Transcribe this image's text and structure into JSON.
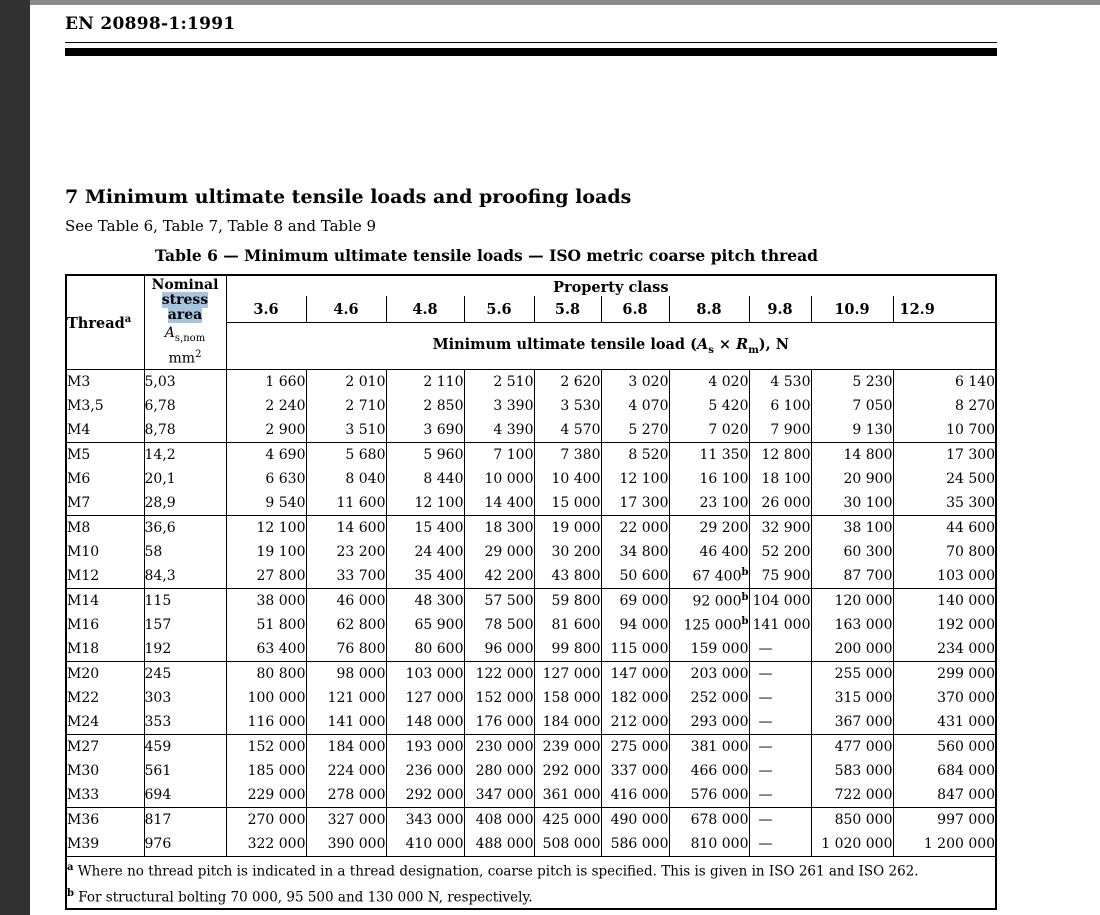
{
  "colors": {
    "selection_highlight": "#a7c4df",
    "chrome_left": "#313131",
    "chrome_top": "#8a8a8a"
  },
  "header": {
    "doc_ref": "EN 20898-1:1991"
  },
  "section": {
    "title": "7 Minimum ultimate tensile loads and proofing loads",
    "see_text": "See Table 6, Table 7, Table 8 and Table 9",
    "table_caption": "Table 6 — Minimum ultimate tensile loads — ISO metric coarse pitch thread"
  },
  "table": {
    "thread_label": "Thread",
    "thread_note_marker": "a",
    "area_label_line1": "Nominal",
    "area_label_hl1": "stress",
    "area_label_hl2": "area",
    "area_symbol": "A",
    "area_symbol_sub": "s,nom",
    "area_unit": "mm",
    "area_unit_sup": "2",
    "property_class_label": "Property class",
    "classes": [
      "3.6",
      "4.6",
      "4.8",
      "5.6",
      "5.8",
      "6.8",
      "8.8",
      "9.8",
      "10.9",
      "12.9"
    ],
    "load_label": {
      "pre": "Minimum ultimate tensile load (",
      "a": "A",
      "a_sub": "s",
      "times": " × ",
      "r": "R",
      "r_sub": "m",
      "post": "), N"
    },
    "groups": [
      [
        {
          "thread": "M3",
          "area": "5,03",
          "values": [
            "1 660",
            "2 010",
            "2 110",
            "2 510",
            "2 620",
            "3 020",
            "4 020",
            "4 530",
            "5 230",
            "6 140"
          ]
        },
        {
          "thread": "M3,5",
          "area": "6,78",
          "values": [
            "2 240",
            "2 710",
            "2 850",
            "3 390",
            "3 530",
            "4 070",
            "5 420",
            "6 100",
            "7 050",
            "8 270"
          ]
        },
        {
          "thread": "M4",
          "area": "8,78",
          "values": [
            "2 900",
            "3 510",
            "3 690",
            "4 390",
            "4 570",
            "5 270",
            "7 020",
            "7 900",
            "9 130",
            "10 700"
          ]
        }
      ],
      [
        {
          "thread": "M5",
          "area": "14,2",
          "values": [
            "4 690",
            "5 680",
            "5 960",
            "7 100",
            "7 380",
            "8 520",
            "11 350",
            "12 800",
            "14 800",
            "17 300"
          ]
        },
        {
          "thread": "M6",
          "area": "20,1",
          "values": [
            "6 630",
            "8 040",
            "8 440",
            "10 000",
            "10 400",
            "12 100",
            "16 100",
            "18 100",
            "20 900",
            "24 500"
          ]
        },
        {
          "thread": "M7",
          "area": "28,9",
          "values": [
            "9 540",
            "11 600",
            "12 100",
            "14 400",
            "15 000",
            "17 300",
            "23 100",
            "26 000",
            "30 100",
            "35 300"
          ]
        }
      ],
      [
        {
          "thread": "M8",
          "area": "36,6",
          "values": [
            "12 100",
            "14 600",
            "15 400",
            "18 300",
            "19 000",
            "22 000",
            "29 200",
            "32 900",
            "38 100",
            "44 600"
          ]
        },
        {
          "thread": "M10",
          "area": "58",
          "values": [
            "19 100",
            "23 200",
            "24 400",
            "29 000",
            "30 200",
            "34 800",
            "46 400",
            "52 200",
            "60 300",
            "70 800"
          ]
        },
        {
          "thread": "M12",
          "area": "84,3",
          "values": [
            "27 800",
            "33 700",
            "35 400",
            "42 200",
            "43 800",
            "50 600",
            "67 400^b",
            "75 900",
            "87 700",
            "103 000"
          ]
        }
      ],
      [
        {
          "thread": "M14",
          "area": "115",
          "values": [
            "38 000",
            "46 000",
            "48 300",
            "57 500",
            "59 800",
            "69 000",
            "92 000^b",
            "104 000",
            "120 000",
            "140 000"
          ]
        },
        {
          "thread": "M16",
          "area": "157",
          "values": [
            "51 800",
            "62 800",
            "65 900",
            "78 500",
            "81 600",
            "94 000",
            "125 000^b",
            "141 000",
            "163 000",
            "192 000"
          ]
        },
        {
          "thread": "M18",
          "area": "192",
          "values": [
            "63 400",
            "76 800",
            "80 600",
            "96 000",
            "99 800",
            "115 000",
            "159 000",
            "—",
            "200 000",
            "234 000"
          ]
        }
      ],
      [
        {
          "thread": "M20",
          "area": "245",
          "values": [
            "80 800",
            "98 000",
            "103 000",
            "122 000",
            "127 000",
            "147 000",
            "203 000",
            "—",
            "255 000",
            "299 000"
          ]
        },
        {
          "thread": "M22",
          "area": "303",
          "values": [
            "100 000",
            "121 000",
            "127 000",
            "152 000",
            "158 000",
            "182 000",
            "252 000",
            "—",
            "315 000",
            "370 000"
          ]
        },
        {
          "thread": "M24",
          "area": "353",
          "values": [
            "116 000",
            "141 000",
            "148 000",
            "176 000",
            "184 000",
            "212 000",
            "293 000",
            "—",
            "367 000",
            "431 000"
          ]
        }
      ],
      [
        {
          "thread": "M27",
          "area": "459",
          "values": [
            "152 000",
            "184 000",
            "193 000",
            "230 000",
            "239 000",
            "275 000",
            "381 000",
            "—",
            "477 000",
            "560 000"
          ]
        },
        {
          "thread": "M30",
          "area": "561",
          "values": [
            "185 000",
            "224 000",
            "236 000",
            "280 000",
            "292 000",
            "337 000",
            "466 000",
            "—",
            "583 000",
            "684 000"
          ]
        },
        {
          "thread": "M33",
          "area": "694",
          "values": [
            "229 000",
            "278 000",
            "292 000",
            "347 000",
            "361 000",
            "416 000",
            "576 000",
            "—",
            "722 000",
            "847 000"
          ]
        }
      ],
      [
        {
          "thread": "M36",
          "area": "817",
          "values": [
            "270 000",
            "327 000",
            "343 000",
            "408 000",
            "425 000",
            "490 000",
            "678 000",
            "—",
            "850 000",
            "997 000"
          ]
        },
        {
          "thread": "M39",
          "area": "976",
          "values": [
            "322 000",
            "390 000",
            "410 000",
            "488 000",
            "508 000",
            "586 000",
            "810 000",
            "—",
            "1 020 000",
            "1 200 000"
          ]
        }
      ]
    ],
    "footnotes": [
      {
        "marker": "a",
        "text": "Where no thread pitch is indicated in a thread designation, coarse pitch is specified. This is given in ISO 261 and ISO 262."
      },
      {
        "marker": "b",
        "text": "For structural bolting 70 000, 95 500 and 130 000 N, respectively."
      }
    ]
  }
}
